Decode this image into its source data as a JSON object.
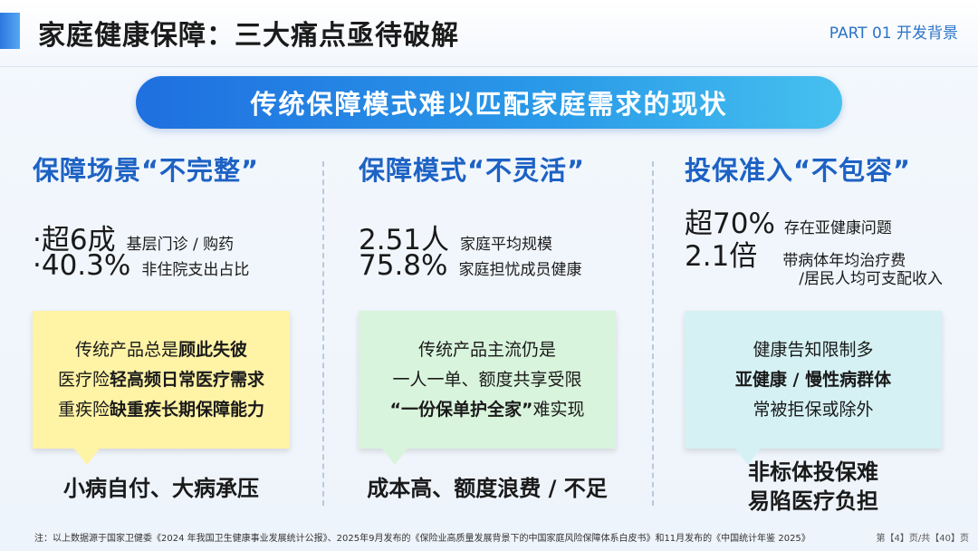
{
  "header": {
    "title": "家庭健康保障：三大痛点亟待破解",
    "part": "PART 01  开发背景"
  },
  "banner": "传统保障模式难以匹配家庭需求的现状",
  "columns": [
    {
      "title": "保障场景“不完整”",
      "stats": [
        {
          "big": "·超6成",
          "small": "基层门诊 / 购药"
        },
        {
          "big": "·40.3%",
          "small": "非住院支出占比"
        }
      ],
      "card_lines": [
        {
          "plain": "传统产品总是",
          "bold": "顾此失彼"
        },
        {
          "plain": "医疗险",
          "bold": "轻高频日常医疗需求"
        },
        {
          "plain": "重疾险",
          "bold": "缺重疾长期保障能力"
        }
      ],
      "conclusion": "小病自付、大病承压"
    },
    {
      "title": "保障模式“不灵活”",
      "stats": [
        {
          "big": "2.51人",
          "small": "家庭平均规模"
        },
        {
          "big": "75.8%",
          "small": "家庭担忧成员健康"
        }
      ],
      "card_lines": [
        {
          "plain": "传统产品主流仍是",
          "bold": ""
        },
        {
          "plain": "一人一单、额度共享受限",
          "bold": ""
        },
        {
          "plain": "难实现",
          "bold": "“一份保单护全家”"
        }
      ],
      "conclusion": "成本高、额度浪费 / 不足"
    },
    {
      "title": "投保准入“不包容”",
      "stats": [
        {
          "big": "超70%",
          "small": "存在亚健康问题"
        },
        {
          "big": "2.1倍",
          "small": "带病体年均治疗费"
        }
      ],
      "stat_sub": "/居民人均可支配收入",
      "card_lines": [
        {
          "plain": "健康告知限制多",
          "bold": ""
        },
        {
          "plain": "",
          "bold": "亚健康 / 慢性病群体"
        },
        {
          "plain": "常被拒保或除外",
          "bold": ""
        }
      ],
      "conclusion_lines": [
        "非标体投保难",
        "易陷医疗负担"
      ]
    }
  ],
  "footnote": "注：以上数据源于国家卫健委《2024 年我国卫生健康事业发展统计公报》、2025年9月发布的《保险业高质量发展背景下的中国家庭风险保障体系白皮书》和11月发布的《中国统计年鉴 2025》",
  "pager": "第【4】页/共【40】页"
}
